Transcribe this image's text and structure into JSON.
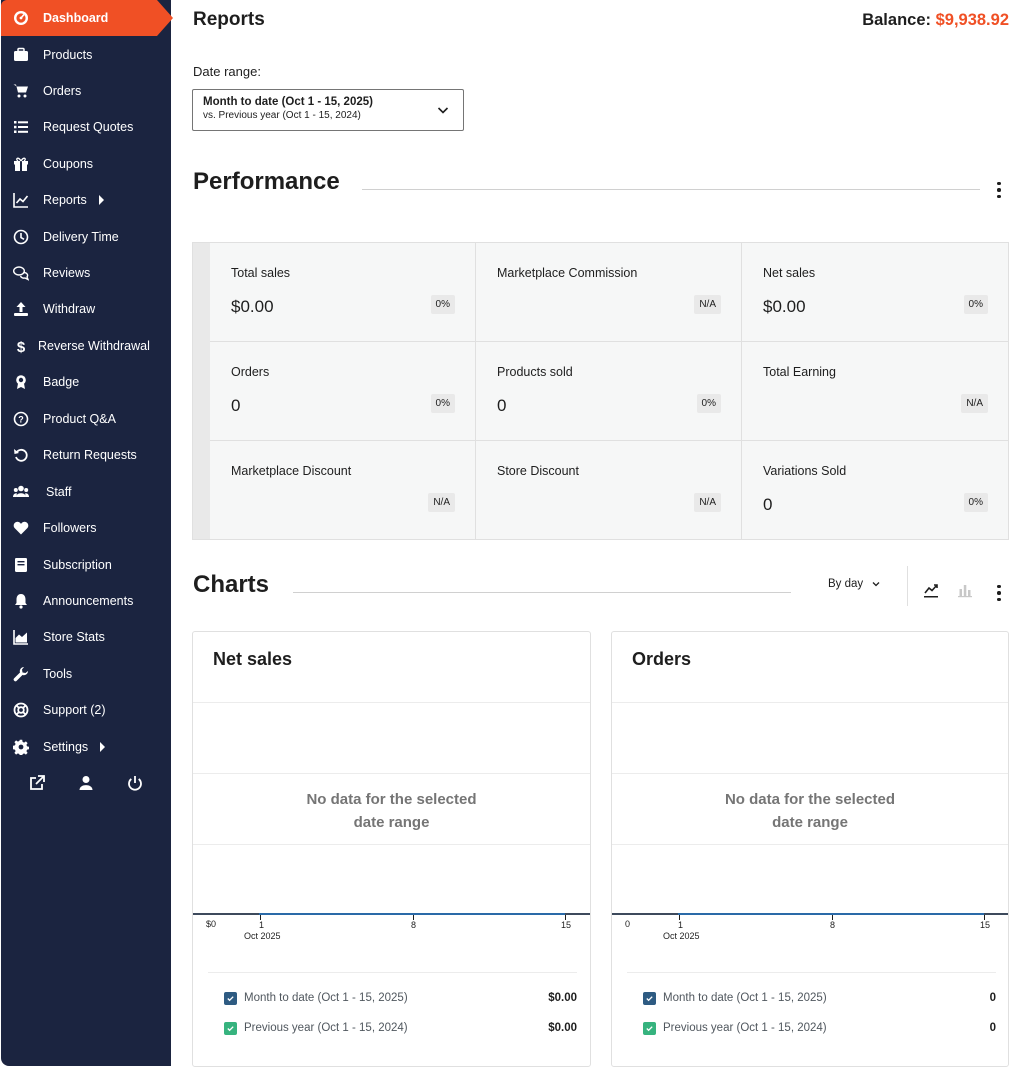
{
  "sidebar": {
    "items": [
      {
        "label": "Dashboard",
        "icon": "dashboard-icon"
      },
      {
        "label": "Products",
        "icon": "briefcase-icon"
      },
      {
        "label": "Orders",
        "icon": "cart-icon"
      },
      {
        "label": "Request Quotes",
        "icon": "list-icon"
      },
      {
        "label": "Coupons",
        "icon": "gift-icon"
      },
      {
        "label": "Reports",
        "icon": "chart-line-icon"
      },
      {
        "label": "Delivery Time",
        "icon": "clock-icon"
      },
      {
        "label": "Reviews",
        "icon": "comments-icon"
      },
      {
        "label": "Withdraw",
        "icon": "upload-icon"
      },
      {
        "label": "Reverse Withdrawal",
        "icon": "dollar-icon"
      },
      {
        "label": "Badge",
        "icon": "award-icon"
      },
      {
        "label": "Product Q&A",
        "icon": "question-icon"
      },
      {
        "label": "Return Requests",
        "icon": "undo-icon"
      },
      {
        "label": "Staff",
        "icon": "users-icon"
      },
      {
        "label": "Followers",
        "icon": "heart-icon"
      },
      {
        "label": "Subscription",
        "icon": "book-icon"
      },
      {
        "label": "Announcements",
        "icon": "bell-icon"
      },
      {
        "label": "Store Stats",
        "icon": "area-chart-icon"
      },
      {
        "label": "Tools",
        "icon": "wrench-icon"
      },
      {
        "label": "Support (2)",
        "icon": "lifebuoy-icon"
      },
      {
        "label": "Settings",
        "icon": "gear-icon"
      }
    ]
  },
  "header": {
    "title": "Reports",
    "balance_label": "Balance:",
    "balance_amount": "$9,938.92"
  },
  "date_range": {
    "label": "Date range:",
    "selected": "Month to date (Oct 1 - 15, 2025)",
    "compare": "vs. Previous year (Oct 1 - 15, 2024)"
  },
  "performance": {
    "title": "Performance",
    "cells": [
      {
        "label": "Total sales",
        "value": "$0.00",
        "badge": "0%"
      },
      {
        "label": "Marketplace Commission",
        "value": "",
        "badge": "N/A"
      },
      {
        "label": "Net sales",
        "value": "$0.00",
        "badge": "0%"
      },
      {
        "label": "Orders",
        "value": "0",
        "badge": "0%"
      },
      {
        "label": "Products sold",
        "value": "0",
        "badge": "0%"
      },
      {
        "label": "Total Earning",
        "value": "",
        "badge": "N/A"
      },
      {
        "label": "Marketplace Discount",
        "value": "",
        "badge": "N/A"
      },
      {
        "label": "Store Discount",
        "value": "",
        "badge": "N/A"
      },
      {
        "label": "Variations Sold",
        "value": "0",
        "badge": "0%"
      }
    ]
  },
  "charts": {
    "title": "Charts",
    "interval": "By day",
    "cards": [
      {
        "title": "Net sales",
        "empty_line1": "No data for the selected",
        "empty_line2": "date range",
        "y_label": "$0",
        "ticks": [
          "1",
          "8",
          "15"
        ],
        "tick_sub": "Oct 2025",
        "legend": [
          {
            "label": "Month to date (Oct 1 - 15, 2025)",
            "value": "$0.00",
            "color": "#2e5b82"
          },
          {
            "label": "Previous year (Oct 1 - 15, 2024)",
            "value": "$0.00",
            "color": "#36b37e"
          }
        ]
      },
      {
        "title": "Orders",
        "empty_line1": "No data for the selected",
        "empty_line2": "date range",
        "y_label": "0",
        "ticks": [
          "1",
          "8",
          "15"
        ],
        "tick_sub": "Oct 2025",
        "legend": [
          {
            "label": "Month to date (Oct 1 - 15, 2025)",
            "value": "0",
            "color": "#2e5b82"
          },
          {
            "label": "Previous year (Oct 1 - 15, 2024)",
            "value": "0",
            "color": "#36b37e"
          }
        ]
      }
    ]
  },
  "colors": {
    "accent": "#f05025",
    "sidebar_bg": "#1b2440"
  }
}
